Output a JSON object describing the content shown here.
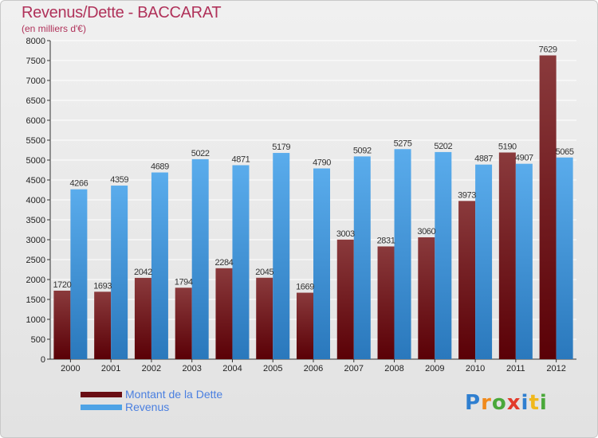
{
  "header": {
    "title": "Revenus/Dette - BACCARAT",
    "subtitle": "(en milliers d'€)"
  },
  "legend": [
    {
      "label": "Montant de la Dette",
      "color": "#6a0e14"
    },
    {
      "label": "Revenus",
      "color": "#4ea3e6"
    }
  ],
  "logo": {
    "text": "Proxiti",
    "letters": [
      {
        "ch": "P",
        "color": "#2f7fd0"
      },
      {
        "ch": "r",
        "color": "#f08a1c"
      },
      {
        "ch": "o",
        "color": "#4aa83a"
      },
      {
        "ch": "x",
        "color": "#e23a2a"
      },
      {
        "ch": "i",
        "color": "#2f7fd0"
      },
      {
        "ch": "t",
        "color": "#f0b81c"
      },
      {
        "ch": "i",
        "color": "#4aa83a"
      }
    ]
  },
  "colors": {
    "debt_top": "#8a3a3c",
    "debt_bottom": "#5a0006",
    "revenue_top": "#5aacec",
    "revenue_bottom": "#2a78bc",
    "grid": "#ffffff",
    "title": "#b0325a"
  },
  "chart_data": {
    "type": "bar",
    "title": "Revenus/Dette - BACCARAT",
    "subtitle": "(en milliers d'€)",
    "categories": [
      "2000",
      "2001",
      "2002",
      "2003",
      "2004",
      "2005",
      "2006",
      "2007",
      "2008",
      "2009",
      "2010",
      "2011",
      "2012"
    ],
    "series": [
      {
        "name": "Montant de la Dette",
        "values": [
          1720,
          1693,
          2042,
          1794,
          2284,
          2045,
          1669,
          3003,
          2831,
          3060,
          3973,
          5190,
          7629
        ]
      },
      {
        "name": "Revenus",
        "values": [
          4266,
          4359,
          4689,
          5022,
          4871,
          5179,
          4790,
          5092,
          5275,
          5202,
          4887,
          4907,
          5065
        ]
      }
    ],
    "ylim": [
      0,
      8000
    ],
    "yticks": [
      0,
      500,
      1000,
      1500,
      2000,
      2500,
      3000,
      3500,
      4000,
      4500,
      5000,
      5500,
      6000,
      6500,
      7000,
      7500,
      8000
    ],
    "grid": true,
    "legend_position": "bottom-left"
  }
}
